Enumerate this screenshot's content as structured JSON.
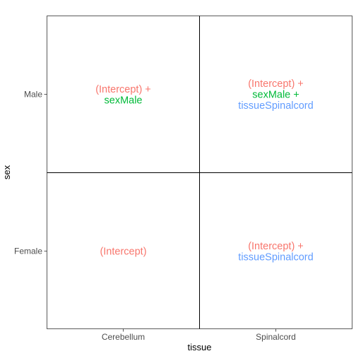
{
  "axes": {
    "x_title": "tissue",
    "y_title": "sex",
    "x_ticks": [
      "Cerebellum",
      "Spinalcord"
    ],
    "y_ticks": [
      "Male",
      "Female"
    ]
  },
  "colors": {
    "intercept": "#f8766d",
    "sexMale": "#00ba38",
    "tissueSpinalcord": "#619cff"
  },
  "cells": [
    {
      "tissue": "Cerebellum",
      "sex": "Male",
      "lines": [
        {
          "text": "(Intercept) +",
          "term": "intercept"
        },
        {
          "text": "sexMale",
          "term": "sexMale"
        }
      ]
    },
    {
      "tissue": "Spinalcord",
      "sex": "Male",
      "lines": [
        {
          "text": "(Intercept) +",
          "term": "intercept"
        },
        {
          "text": "sexMale +",
          "term": "sexMale"
        },
        {
          "text": "tissueSpinalcord",
          "term": "tissueSpinalcord"
        }
      ]
    },
    {
      "tissue": "Cerebellum",
      "sex": "Female",
      "lines": [
        {
          "text": "(Intercept)",
          "term": "intercept"
        }
      ]
    },
    {
      "tissue": "Spinalcord",
      "sex": "Female",
      "lines": [
        {
          "text": "(Intercept) +",
          "term": "intercept"
        },
        {
          "text": "tissueSpinalcord",
          "term": "tissueSpinalcord"
        }
      ]
    }
  ]
}
